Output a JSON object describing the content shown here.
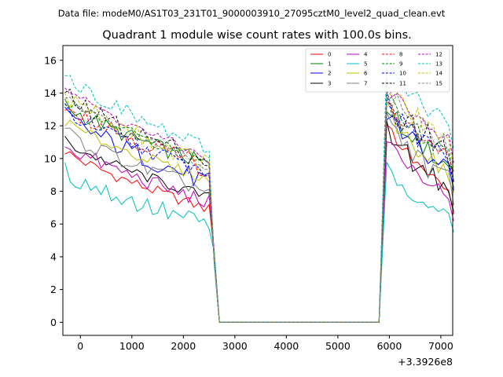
{
  "chart_data": {
    "type": "line",
    "suptitle": "Data file: modeM0/AS1T03_231T01_9000003910_27095cztM0_level2_quad_clean.evt",
    "title": "Quadrant 1 module wise count rates with 100.0s bins.",
    "xlabel": "",
    "ylabel": "",
    "x_offset_label": "+3.3926e8",
    "xlim": [
      -340,
      7230
    ],
    "ylim": [
      -0.8,
      16.9
    ],
    "xticks": [
      0,
      1000,
      2000,
      3000,
      4000,
      5000,
      6000,
      7000
    ],
    "yticks": [
      0,
      2,
      4,
      6,
      8,
      10,
      12,
      14,
      16
    ],
    "grid": false,
    "legend_position": "upper right",
    "legend_columns": 4,
    "segments": {
      "first_start": -300,
      "first_end": 2500,
      "zero_start": 2700,
      "zero_end": 5800,
      "second_start": 5950,
      "second_end": 7200,
      "step": 100
    },
    "series": [
      {
        "name": "0",
        "color": "#ff0000",
        "dash": "solid",
        "start": 10.5,
        "end": 6.9,
        "dip": 4.2,
        "second_start": 12.2,
        "second_end": 7.6
      },
      {
        "name": "1",
        "color": "#008000",
        "dash": "solid",
        "start": 13.3,
        "end": 9.6,
        "dip": 3.9,
        "second_start": 13.3,
        "second_end": 9.3
      },
      {
        "name": "2",
        "color": "#0000ff",
        "dash": "solid",
        "start": 12.7,
        "end": 8.5,
        "dip": 4.1,
        "second_start": 12.9,
        "second_end": 9.2
      },
      {
        "name": "3",
        "color": "#000000",
        "dash": "solid",
        "start": 11.1,
        "end": 7.6,
        "dip": 4.0,
        "second_start": 11.6,
        "second_end": 8.0
      },
      {
        "name": "4",
        "color": "#bf00bf",
        "dash": "solid",
        "start": 10.9,
        "end": 7.3,
        "dip": 4.3,
        "second_start": 11.3,
        "second_end": 7.5
      },
      {
        "name": "5",
        "color": "#00bfbf",
        "dash": "solid",
        "start": 9.2,
        "end": 5.9,
        "dip": 4.3,
        "second_start": 9.4,
        "second_end": 6.5
      },
      {
        "name": "6",
        "color": "#bfbf00",
        "dash": "solid",
        "start": 12.3,
        "end": 8.7,
        "dip": 3.9,
        "second_start": 12.9,
        "second_end": 9.0
      },
      {
        "name": "7",
        "color": "#808080",
        "dash": "solid",
        "start": 11.7,
        "end": 8.0,
        "dip": 3.9,
        "second_start": 12.6,
        "second_end": 8.3
      },
      {
        "name": "8",
        "color": "#ff0000",
        "dash": "dashed",
        "start": 13.5,
        "end": 9.4,
        "dip": 3.7,
        "second_start": 13.6,
        "second_end": 9.8
      },
      {
        "name": "9",
        "color": "#008000",
        "dash": "dashed",
        "start": 13.6,
        "end": 9.8,
        "dip": 3.7,
        "second_start": 14.0,
        "second_end": 10.0
      },
      {
        "name": "10",
        "color": "#0000ff",
        "dash": "dashed",
        "start": 13.0,
        "end": 9.1,
        "dip": 3.7,
        "second_start": 13.4,
        "second_end": 9.6
      },
      {
        "name": "11",
        "color": "#000000",
        "dash": "dashed",
        "start": 13.9,
        "end": 9.8,
        "dip": 3.6,
        "second_start": 13.6,
        "second_end": 10.3
      },
      {
        "name": "12",
        "color": "#bf00bf",
        "dash": "dashed",
        "start": 14.4,
        "end": 10.0,
        "dip": 3.6,
        "second_start": 14.6,
        "second_end": 10.9
      },
      {
        "name": "13",
        "color": "#00bfbf",
        "dash": "dashed",
        "start": 15.2,
        "end": 10.5,
        "dip": 3.5,
        "second_start": 16.0,
        "second_end": 11.8
      },
      {
        "name": "14",
        "color": "#bfbf00",
        "dash": "dashed",
        "start": 14.0,
        "end": 9.6,
        "dip": 3.7,
        "second_start": 14.7,
        "second_end": 10.6
      },
      {
        "name": "15",
        "color": "#808080",
        "dash": "dashed",
        "start": 13.8,
        "end": 9.4,
        "dip": 3.7,
        "second_start": 14.3,
        "second_end": 10.2
      }
    ]
  }
}
